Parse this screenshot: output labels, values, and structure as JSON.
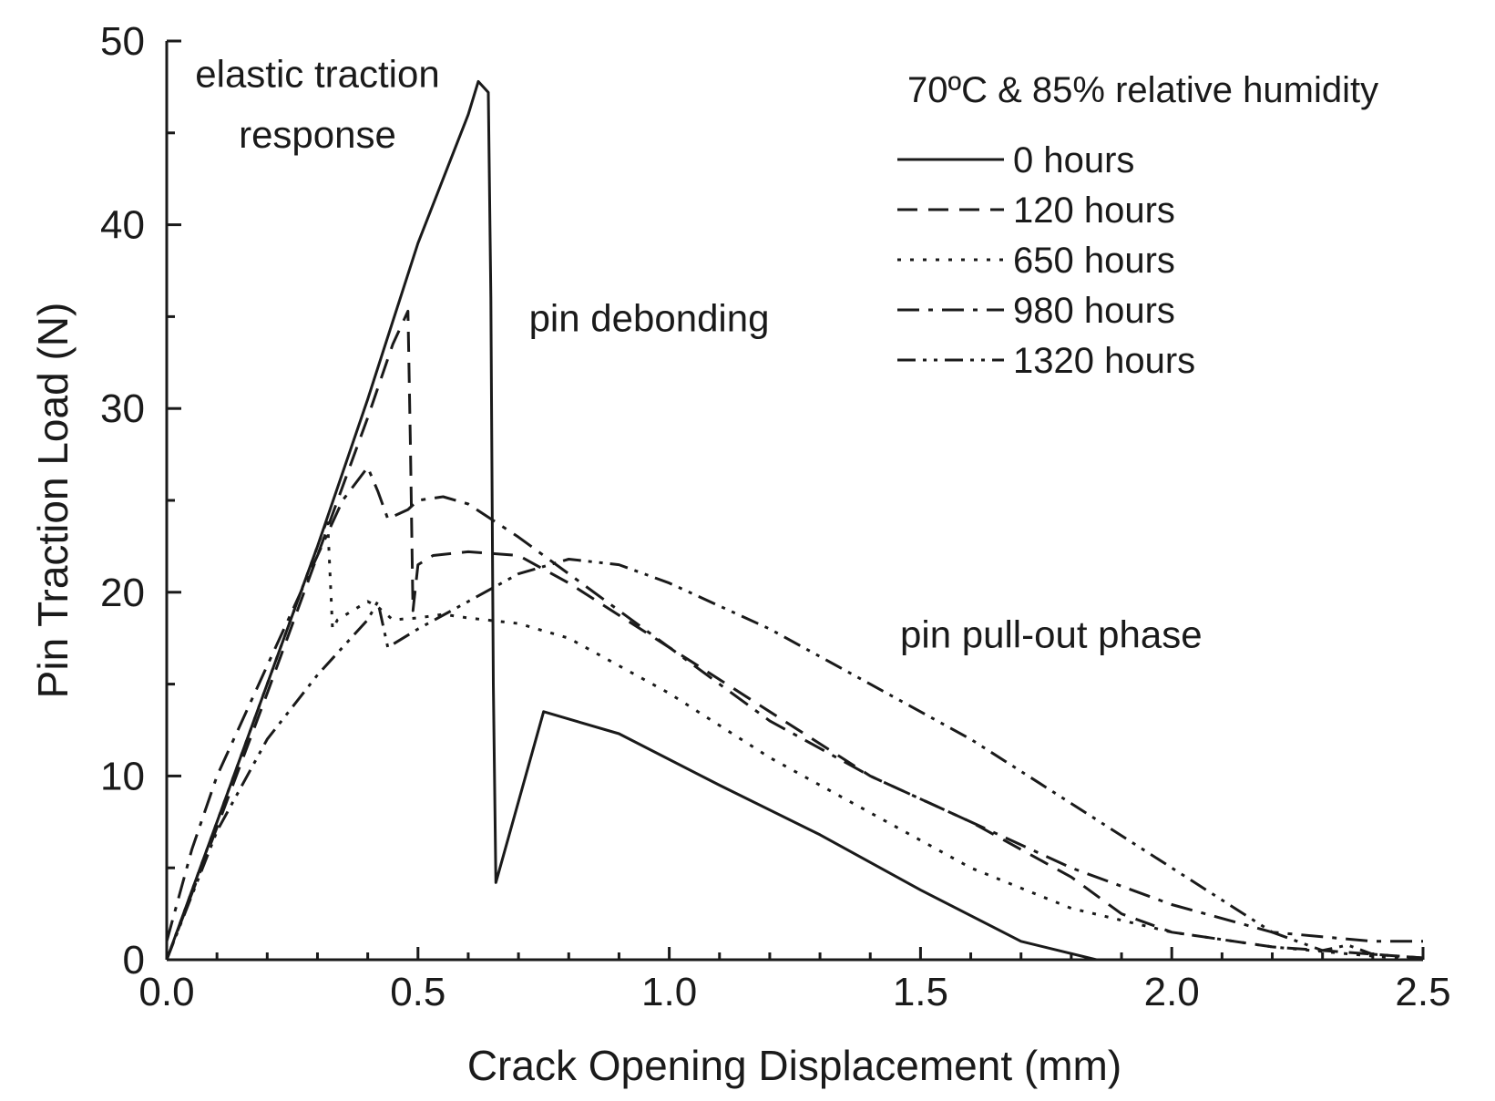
{
  "chart_data": {
    "type": "line",
    "xlabel": "Crack Opening Displacement (mm)",
    "ylabel": "Pin Traction Load (N)",
    "xlim": [
      0,
      2.5
    ],
    "ylim": [
      0,
      50
    ],
    "x_ticks": [
      "0.0",
      "0.5",
      "1.0",
      "1.5",
      "2.0",
      "2.5"
    ],
    "y_ticks": [
      "0",
      "10",
      "20",
      "30",
      "40",
      "50"
    ],
    "x_tick_values": [
      0,
      0.5,
      1.0,
      1.5,
      2.0,
      2.5
    ],
    "y_tick_values": [
      0,
      10,
      20,
      30,
      40,
      50
    ],
    "grid": false,
    "legend_title": "70ºC & 85% relative humidity",
    "legend_position": "top-right",
    "annotations": [
      {
        "text": "elastic traction",
        "x": 0.3,
        "y": 47.5
      },
      {
        "text": "response",
        "x": 0.3,
        "y": 44.2
      },
      {
        "text": "pin debonding",
        "x": 0.96,
        "y": 34.2
      },
      {
        "text": "pin pull-out phase",
        "x": 1.76,
        "y": 17.0
      }
    ],
    "series": [
      {
        "name": "0 hours",
        "dash": "solid",
        "x": [
          0,
          0.1,
          0.2,
          0.3,
          0.4,
          0.5,
          0.6,
          0.62,
          0.64,
          0.645,
          0.65,
          0.655,
          0.75,
          0.9,
          1.1,
          1.3,
          1.5,
          1.7,
          1.85
        ],
        "y": [
          0,
          7.5,
          15,
          22.5,
          30.5,
          39,
          46,
          47.8,
          47.2,
          36,
          15,
          4.2,
          13.5,
          12.3,
          9.5,
          6.8,
          3.8,
          1.0,
          0
        ]
      },
      {
        "name": "120 hours",
        "dash": "dashed",
        "x": [
          0,
          0.1,
          0.2,
          0.3,
          0.4,
          0.45,
          0.48,
          0.485,
          0.49,
          0.5,
          0.53,
          0.6,
          0.7,
          0.8,
          1.0,
          1.2,
          1.4,
          1.6,
          1.8,
          1.9,
          2.0,
          2.2,
          2.3,
          2.4,
          2.5
        ],
        "y": [
          0,
          7.2,
          14.5,
          22,
          29.5,
          33.5,
          35.3,
          28,
          19,
          21.5,
          22.0,
          22.2,
          22.0,
          20.5,
          17,
          13.5,
          10,
          7.5,
          4.5,
          2.5,
          1.5,
          0.7,
          0.5,
          0.3,
          0.1
        ]
      },
      {
        "name": "650 hours",
        "dash": "dotted",
        "x": [
          0,
          0.1,
          0.2,
          0.3,
          0.32,
          0.33,
          0.34,
          0.4,
          0.42,
          0.45,
          0.5,
          0.55,
          0.6,
          0.7,
          0.8,
          1.0,
          1.2,
          1.4,
          1.6,
          1.8,
          2.0,
          2.2,
          2.4,
          2.5
        ],
        "y": [
          0,
          7.5,
          15,
          22.5,
          24,
          18,
          18.5,
          19.5,
          19.2,
          18.5,
          18.6,
          18.8,
          18.6,
          18.3,
          17.5,
          14.5,
          11.0,
          8.0,
          5.0,
          2.8,
          1.5,
          0.7,
          0.2,
          0
        ]
      },
      {
        "name": "980 hours",
        "dash": "dashdot",
        "x": [
          0,
          0.05,
          0.1,
          0.2,
          0.3,
          0.35,
          0.4,
          0.42,
          0.44,
          0.48,
          0.5,
          0.55,
          0.6,
          0.7,
          0.8,
          1.0,
          1.2,
          1.4,
          1.6,
          1.8,
          2.0,
          2.2,
          2.4,
          2.5
        ],
        "y": [
          1,
          6,
          10,
          16,
          22,
          25,
          26.8,
          25.5,
          24,
          24.5,
          25,
          25.2,
          24.8,
          23,
          21,
          17,
          13,
          10,
          7.5,
          5.0,
          3.0,
          1.5,
          1.0,
          1.0
        ]
      },
      {
        "name": "1320 hours",
        "dash": "dashdotdot",
        "x": [
          0,
          0.1,
          0.2,
          0.3,
          0.4,
          0.42,
          0.44,
          0.5,
          0.6,
          0.7,
          0.8,
          0.9,
          1.0,
          1.2,
          1.4,
          1.6,
          1.8,
          2.0,
          2.2,
          2.3,
          2.35,
          2.4,
          2.5
        ],
        "y": [
          0,
          7,
          12,
          15.5,
          18.5,
          19.5,
          17,
          18,
          19.5,
          21,
          21.8,
          21.5,
          20.5,
          18,
          15,
          12,
          8.5,
          5,
          1.5,
          0.5,
          0.8,
          0.3,
          0.1
        ]
      }
    ]
  }
}
